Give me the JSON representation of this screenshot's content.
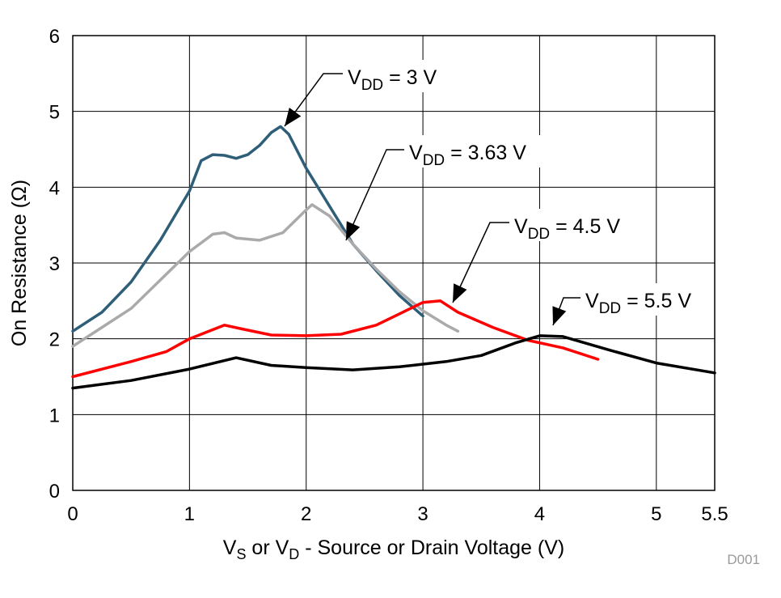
{
  "chart_data": {
    "type": "line",
    "xlabel_parts": [
      {
        "t": "V"
      },
      {
        "t": "S",
        "sub": true
      },
      {
        "t": " or V"
      },
      {
        "t": "D",
        "sub": true
      },
      {
        "t": " - Source or Drain Voltage (V)"
      }
    ],
    "ylabel": "On Resistance (Ω)",
    "xlim": [
      0,
      5.5
    ],
    "ylim": [
      0,
      6
    ],
    "xticks": [
      0,
      1,
      2,
      3,
      4,
      5,
      5.5
    ],
    "xtick_labels": [
      "0",
      "1",
      "2",
      "3",
      "4",
      "5",
      "5.5"
    ],
    "yticks": [
      0,
      1,
      2,
      3,
      4,
      5,
      6
    ],
    "ytick_labels": [
      "0",
      "1",
      "2",
      "3",
      "4",
      "5",
      "6"
    ],
    "grid": true,
    "footnote": "D001",
    "series": [
      {
        "name": "VDD = 3 V",
        "label": {
          "main": "V",
          "sub": "DD",
          "rest": " = 3 V"
        },
        "color": "#2f5f78",
        "x": [
          0,
          0.25,
          0.5,
          0.75,
          1.0,
          1.1,
          1.2,
          1.3,
          1.4,
          1.5,
          1.6,
          1.7,
          1.78,
          1.85,
          2.0,
          2.2,
          2.4,
          2.6,
          2.8,
          3.0
        ],
        "y": [
          2.1,
          2.35,
          2.75,
          3.3,
          3.95,
          4.35,
          4.43,
          4.42,
          4.38,
          4.43,
          4.55,
          4.72,
          4.8,
          4.7,
          4.25,
          3.75,
          3.25,
          2.9,
          2.57,
          2.3
        ]
      },
      {
        "name": "VDD = 3.63 V",
        "label": {
          "main": "V",
          "sub": "DD",
          "rest": " = 3.63 V"
        },
        "color": "#aaaaaa",
        "x": [
          0,
          0.5,
          1.0,
          1.2,
          1.3,
          1.4,
          1.6,
          1.8,
          2.0,
          2.05,
          2.2,
          2.4,
          2.6,
          2.8,
          3.0,
          3.2,
          3.3
        ],
        "y": [
          1.9,
          2.4,
          3.15,
          3.38,
          3.4,
          3.33,
          3.3,
          3.4,
          3.7,
          3.77,
          3.62,
          3.25,
          2.92,
          2.62,
          2.37,
          2.18,
          2.1
        ]
      },
      {
        "name": "VDD = 4.5 V",
        "label": {
          "main": "V",
          "sub": "DD",
          "rest": " = 4.5 V"
        },
        "color": "#ff0000",
        "x": [
          0,
          0.5,
          0.8,
          1.0,
          1.3,
          1.45,
          1.7,
          2.0,
          2.3,
          2.6,
          2.8,
          3.0,
          3.15,
          3.3,
          3.6,
          3.9,
          4.2,
          4.5
        ],
        "y": [
          1.5,
          1.7,
          1.83,
          2.0,
          2.18,
          2.13,
          2.05,
          2.04,
          2.06,
          2.18,
          2.33,
          2.48,
          2.5,
          2.35,
          2.15,
          1.98,
          1.88,
          1.73
        ]
      },
      {
        "name": "VDD = 5.5 V",
        "label": {
          "main": "V",
          "sub": "DD",
          "rest": " = 5.5 V"
        },
        "color": "#000000",
        "x": [
          0,
          0.5,
          1.0,
          1.4,
          1.7,
          2.0,
          2.4,
          2.8,
          3.2,
          3.5,
          3.8,
          4.0,
          4.2,
          4.6,
          5.0,
          5.5
        ],
        "y": [
          1.35,
          1.45,
          1.6,
          1.75,
          1.65,
          1.62,
          1.59,
          1.63,
          1.7,
          1.78,
          1.95,
          2.04,
          2.03,
          1.85,
          1.68,
          1.55
        ]
      }
    ]
  }
}
